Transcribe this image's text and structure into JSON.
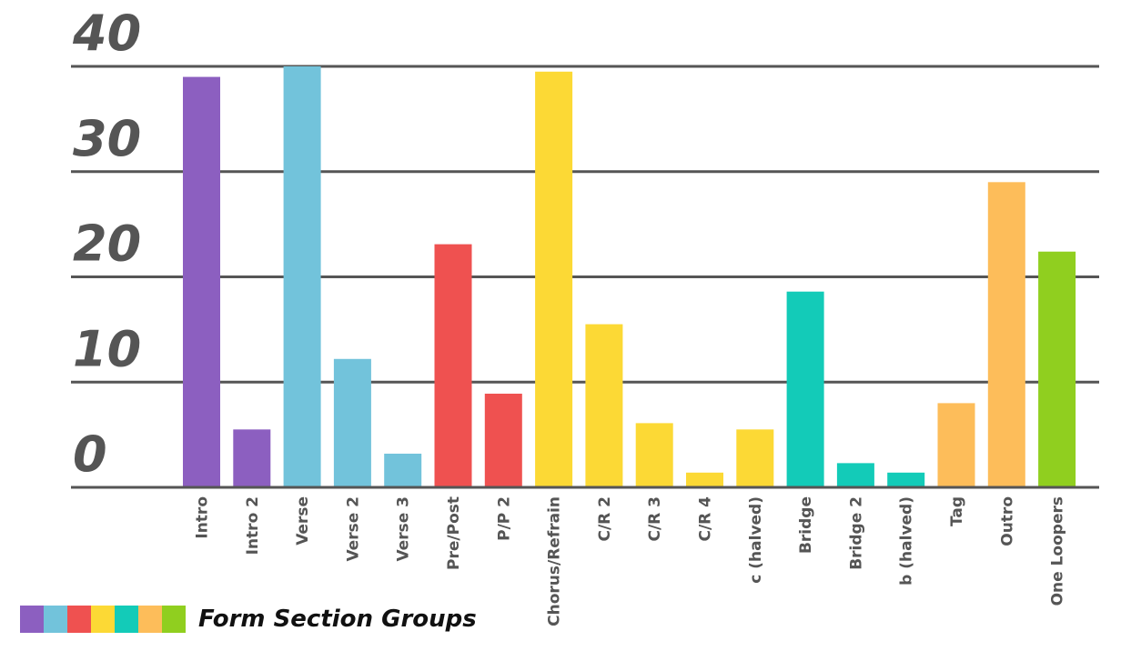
{
  "chart_data": {
    "type": "bar",
    "categories": [
      "Intro",
      "Intro 2",
      "Verse",
      "Verse 2",
      "Verse 3",
      "Pre/Post",
      "P/P 2",
      "Chorus/Refrain",
      "C/R 2",
      "C/R 3",
      "C/R 4",
      "c (halved)",
      "Bridge",
      "Bridge 2",
      "b (halved)",
      "Tag",
      "Outro",
      "One Loopers"
    ],
    "values": [
      39,
      5.5,
      40,
      12.2,
      3.2,
      23.1,
      8.9,
      39.5,
      15.5,
      6.1,
      1.4,
      5.5,
      18.6,
      2.3,
      1.4,
      8,
      29,
      22.4
    ],
    "colors": [
      "#8c5fc0",
      "#8c5fc0",
      "#72c3db",
      "#72c3db",
      "#72c3db",
      "#ef5150",
      "#ef5150",
      "#fcd935",
      "#fcd935",
      "#fcd935",
      "#fcd935",
      "#fcd935",
      "#13cbb8",
      "#13cbb8",
      "#13cbb8",
      "#fdbd5a",
      "#fdbd5a",
      "#90cf1f"
    ],
    "yticks": [
      "0",
      "10",
      "20",
      "30",
      "40"
    ],
    "ylim": [
      0,
      40
    ],
    "grid": true,
    "legend": {
      "label": "Form Section Groups",
      "swatches": [
        "#8c5fc0",
        "#72c3db",
        "#ef5150",
        "#fcd935",
        "#13cbb8",
        "#fdbd5a",
        "#90cf1f"
      ],
      "placement": "bottom-left"
    }
  }
}
